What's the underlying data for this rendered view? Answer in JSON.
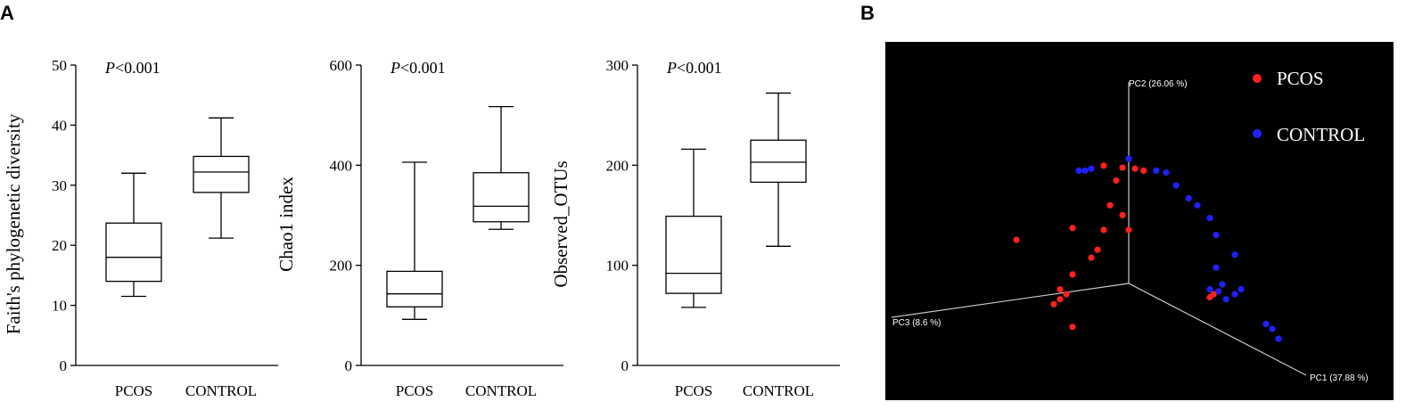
{
  "panels": {
    "a": "A",
    "b": "B"
  },
  "chart_data": [
    {
      "type": "box",
      "categories": [
        "PCOS",
        "CONTROL"
      ],
      "ylabel": "Faith's phylogenetic diversity",
      "ylim": [
        0,
        50
      ],
      "yticks": [
        0,
        10,
        20,
        30,
        40,
        50
      ],
      "p_italic": "P",
      "p_rest": "<0.001",
      "boxes": [
        {
          "min": 11.5,
          "q1": 14,
          "median": 18,
          "q3": 23.7,
          "max": 32
        },
        {
          "min": 21.2,
          "q1": 28.8,
          "median": 32.2,
          "q3": 34.8,
          "max": 41.2
        }
      ]
    },
    {
      "type": "box",
      "categories": [
        "PCOS",
        "CONTROL"
      ],
      "ylabel": "Chao1 index",
      "ylim": [
        0,
        600
      ],
      "yticks": [
        0,
        200,
        400,
        600
      ],
      "p_italic": "P",
      "p_rest": "<0.001",
      "boxes": [
        {
          "min": 92,
          "q1": 117,
          "median": 143,
          "q3": 188,
          "max": 406
        },
        {
          "min": 272,
          "q1": 287,
          "median": 318,
          "q3": 385,
          "max": 517
        }
      ]
    },
    {
      "type": "box",
      "categories": [
        "PCOS",
        "CONTROL"
      ],
      "ylabel": "Observed_OTUs",
      "ylim": [
        0,
        300
      ],
      "yticks": [
        0,
        100,
        200,
        300
      ],
      "p_italic": "P",
      "p_rest": "<0.001",
      "boxes": [
        {
          "min": 58,
          "q1": 72,
          "median": 92,
          "q3": 149,
          "max": 216
        },
        {
          "min": 119,
          "q1": 183,
          "median": 203,
          "q3": 225,
          "max": 272
        }
      ]
    },
    {
      "type": "scatter",
      "projection": "3d-pca",
      "background": "#000000",
      "axes": [
        {
          "name": "PC1",
          "label": "PC1 (37.88 %)"
        },
        {
          "name": "PC2",
          "label": "PC2 (26.06 %)"
        },
        {
          "name": "PC3",
          "label": "PC3 (8.6 %)"
        }
      ],
      "legend": {
        "position": "top-right"
      },
      "series": [
        {
          "name": "PCOS",
          "color": "#ff2020",
          "points": [
            [
              -0.2,
              0.65
            ],
            [
              -0.05,
              0.63
            ],
            [
              0.05,
              0.62
            ],
            [
              0.12,
              0.6
            ],
            [
              -0.1,
              0.5
            ],
            [
              -0.15,
              0.25
            ],
            [
              -0.05,
              0.15
            ],
            [
              -0.2,
              0.0
            ],
            [
              -0.45,
              0.02
            ],
            [
              -0.9,
              -0.1
            ],
            [
              -0.3,
              -0.28
            ],
            [
              -0.25,
              -0.2
            ],
            [
              -0.45,
              -0.45
            ],
            [
              -0.55,
              -0.6
            ],
            [
              -0.5,
              -0.65
            ],
            [
              -0.55,
              -0.7
            ],
            [
              -0.6,
              -0.75
            ],
            [
              -0.45,
              -0.98
            ],
            [
              0.65,
              -0.68
            ],
            [
              0.68,
              -0.65
            ],
            [
              0.0,
              0.0
            ]
          ]
        },
        {
          "name": "CONTROL",
          "color": "#2020ff",
          "points": [
            [
              -0.4,
              0.6
            ],
            [
              -0.35,
              0.6
            ],
            [
              -0.3,
              0.62
            ],
            [
              0.0,
              0.72
            ],
            [
              0.22,
              0.6
            ],
            [
              0.3,
              0.58
            ],
            [
              0.38,
              0.45
            ],
            [
              0.48,
              0.32
            ],
            [
              0.55,
              0.25
            ],
            [
              0.65,
              0.12
            ],
            [
              0.7,
              -0.05
            ],
            [
              0.85,
              -0.25
            ],
            [
              0.7,
              -0.38
            ],
            [
              0.65,
              -0.6
            ],
            [
              0.72,
              -0.62
            ],
            [
              0.78,
              -0.7
            ],
            [
              0.85,
              -0.65
            ],
            [
              0.9,
              -0.6
            ],
            [
              0.75,
              -0.55
            ],
            [
              1.1,
              -0.95
            ],
            [
              1.15,
              -1.0
            ],
            [
              1.2,
              -1.1
            ]
          ]
        }
      ]
    }
  ]
}
